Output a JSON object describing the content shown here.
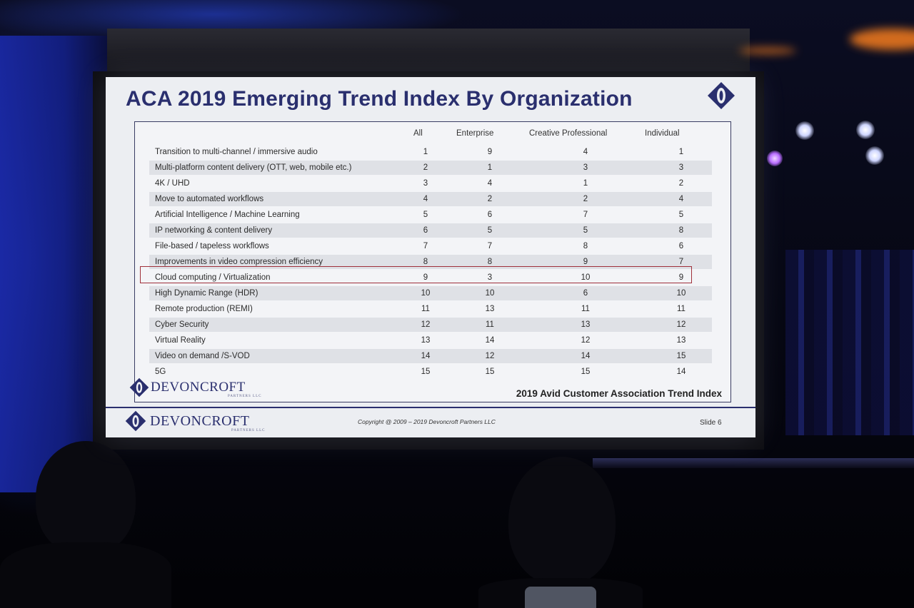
{
  "slide": {
    "title": "ACA 2019 Emerging Trend Index By Organization",
    "columns": [
      "All",
      "Enterprise",
      "Creative Professional",
      "Individual"
    ],
    "rows": [
      {
        "label": "Transition to multi-channel / immersive audio",
        "all": "1",
        "enterprise": "9",
        "creative": "4",
        "individual": "1"
      },
      {
        "label": "Multi-platform content delivery (OTT, web, mobile etc.)",
        "all": "2",
        "enterprise": "1",
        "creative": "3",
        "individual": "3"
      },
      {
        "label": "4K / UHD",
        "all": "3",
        "enterprise": "4",
        "creative": "1",
        "individual": "2"
      },
      {
        "label": "Move to automated workflows",
        "all": "4",
        "enterprise": "2",
        "creative": "2",
        "individual": "4"
      },
      {
        "label": "Artificial Intelligence / Machine Learning",
        "all": "5",
        "enterprise": "6",
        "creative": "7",
        "individual": "5"
      },
      {
        "label": "IP networking & content delivery",
        "all": "6",
        "enterprise": "5",
        "creative": "5",
        "individual": "8"
      },
      {
        "label": "File-based / tapeless workflows",
        "all": "7",
        "enterprise": "7",
        "creative": "8",
        "individual": "6"
      },
      {
        "label": "Improvements in video compression efficiency",
        "all": "8",
        "enterprise": "8",
        "creative": "9",
        "individual": "7"
      },
      {
        "label": "Cloud computing / Virtualization",
        "all": "9",
        "enterprise": "3",
        "creative": "10",
        "individual": "9"
      },
      {
        "label": "High Dynamic Range (HDR)",
        "all": "10",
        "enterprise": "10",
        "creative": "6",
        "individual": "10"
      },
      {
        "label": "Remote production (REMI)",
        "all": "11",
        "enterprise": "13",
        "creative": "11",
        "individual": "11"
      },
      {
        "label": "Cyber Security",
        "all": "12",
        "enterprise": "11",
        "creative": "13",
        "individual": "12"
      },
      {
        "label": "Virtual Reality",
        "all": "13",
        "enterprise": "14",
        "creative": "12",
        "individual": "13"
      },
      {
        "label": "Video on demand /S-VOD",
        "all": "14",
        "enterprise": "12",
        "creative": "14",
        "individual": "15"
      },
      {
        "label": "5G",
        "all": "15",
        "enterprise": "15",
        "creative": "15",
        "individual": "14"
      }
    ],
    "highlighted_row": "Cloud computing / Virtualization",
    "brand": "DEVONCROFT",
    "brand_sub": "PARTNERS LLC",
    "trend_index_title": "2019 Avid Customer Association Trend Index",
    "copyright": "Copyright @ 2009 – 2019 Devoncroft Partners LLC",
    "slide_number": "Slide 6"
  },
  "colors": {
    "brand_navy": "#2a2f6e",
    "highlight_border": "#a0303a",
    "venue_blue": "#1b2bb0",
    "stage_orange": "#e8761e"
  }
}
